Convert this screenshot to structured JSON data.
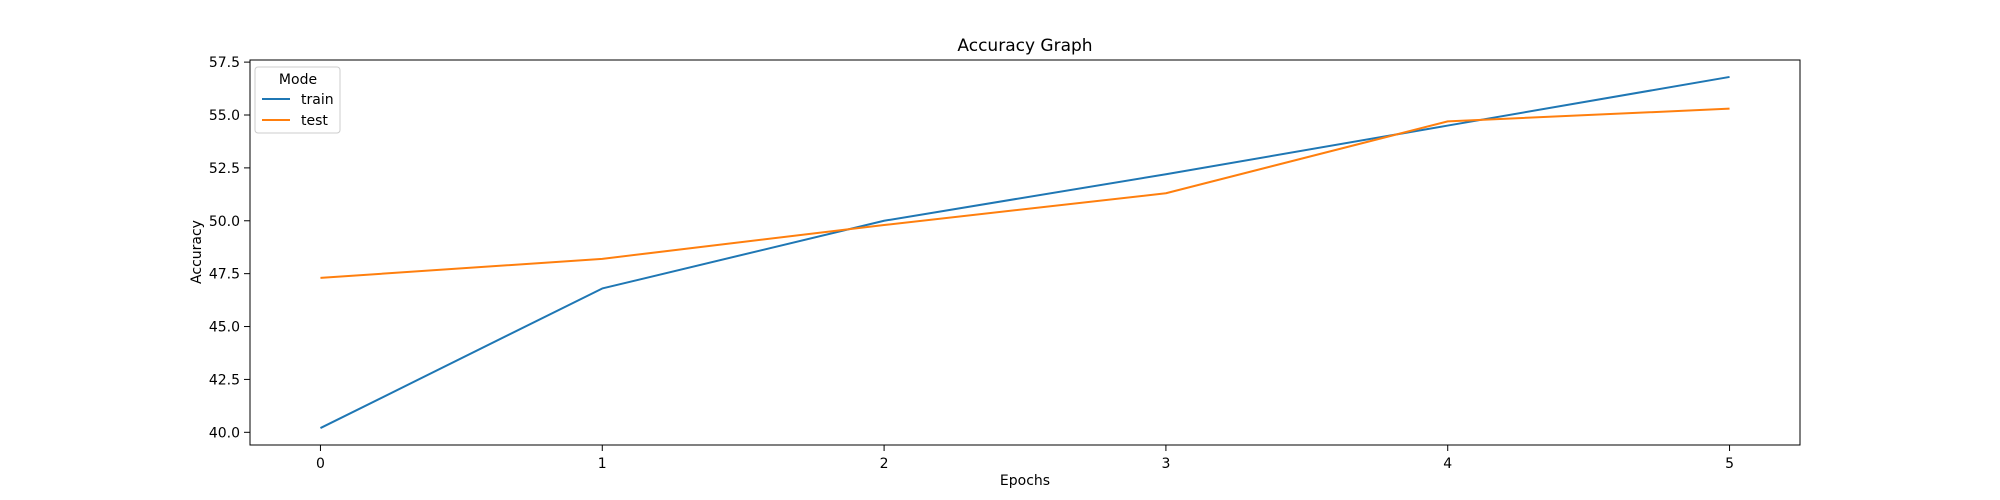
{
  "chart_data": {
    "type": "line",
    "title": "Accuracy Graph",
    "xlabel": "Epochs",
    "ylabel": "Accuracy",
    "x": [
      0,
      1,
      2,
      3,
      4,
      5
    ],
    "xlim": [
      -0.25,
      5.25
    ],
    "ylim": [
      39.4,
      57.6
    ],
    "xticks": [
      "0",
      "1",
      "2",
      "3",
      "4",
      "5"
    ],
    "yticks": [
      "40.0",
      "42.5",
      "45.0",
      "47.5",
      "50.0",
      "52.5",
      "55.0",
      "57.5"
    ],
    "grid": false,
    "legend": {
      "title": "Mode",
      "placement": "top-left"
    },
    "series": [
      {
        "name": "train",
        "color": "#1f77b4",
        "values": [
          40.2,
          46.8,
          50.0,
          52.2,
          54.5,
          56.8
        ]
      },
      {
        "name": "test",
        "color": "#ff7f0e",
        "values": [
          47.3,
          48.2,
          49.8,
          51.3,
          54.7,
          55.3
        ]
      }
    ]
  }
}
